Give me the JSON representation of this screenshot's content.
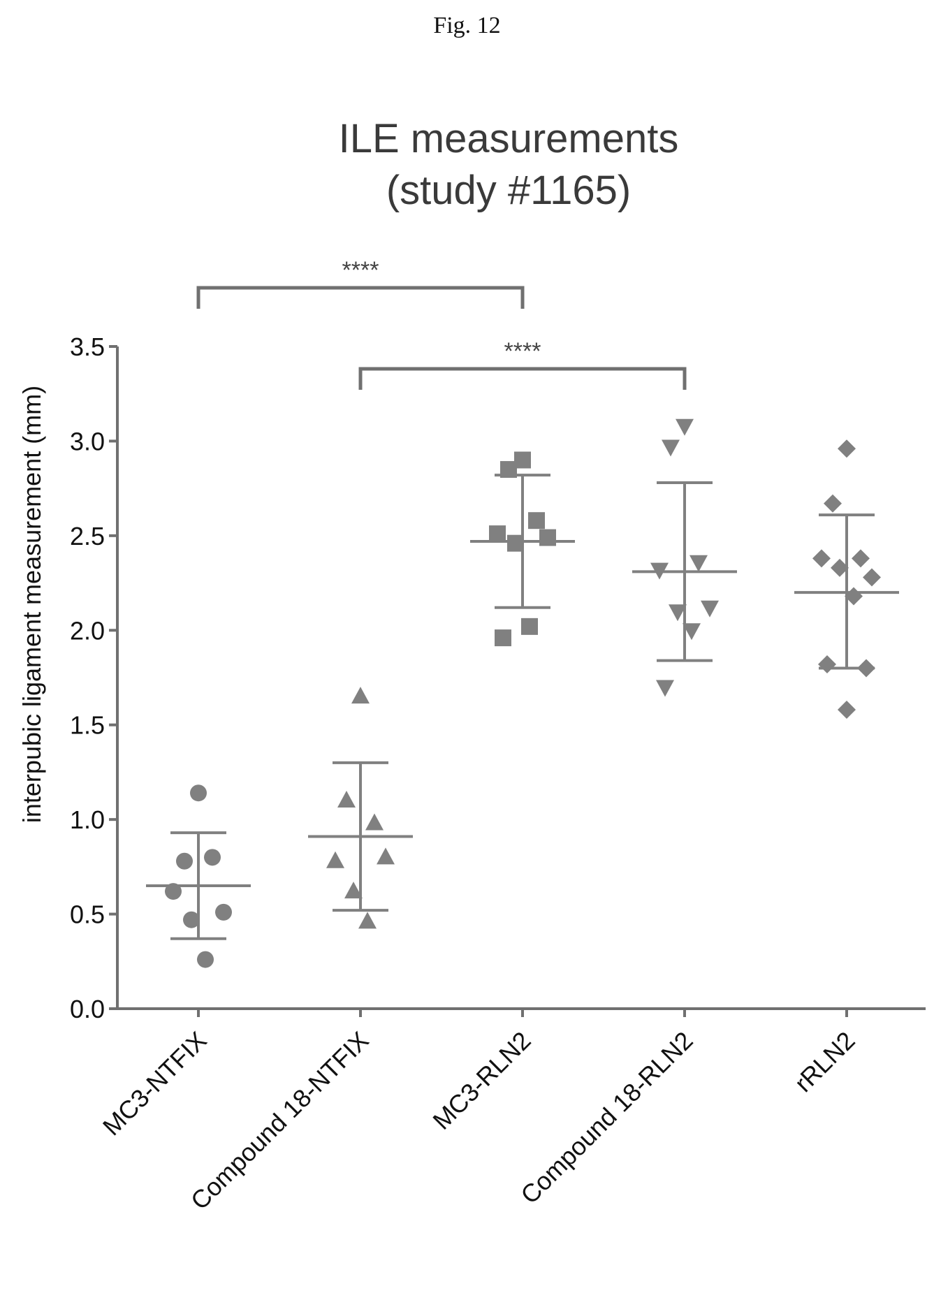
{
  "figure_label": "Fig. 12",
  "chart_data": {
    "type": "scatter",
    "title": "ILE measurements",
    "subtitle": "(study #1165)",
    "ylabel": "interpubic ligament measurement (mm)",
    "xlabel": "",
    "ylim": [
      0,
      3.5
    ],
    "yticks": [
      0.0,
      0.5,
      1.0,
      1.5,
      2.0,
      2.5,
      3.0,
      3.5
    ],
    "ytick_labels": [
      "0.0",
      "0.5",
      "1.0",
      "1.5",
      "2.0",
      "2.5",
      "3.0",
      "3.5"
    ],
    "categories": [
      "MC3-NTFIX",
      "Compound 18-NTFIX",
      "MC3-RLN2",
      "Compound 18-RLN2",
      "rRLN2"
    ],
    "groups": [
      {
        "category": "MC3-NTFIX",
        "marker": "circle",
        "points": [
          1.14,
          0.78,
          0.8,
          0.62,
          0.51,
          0.47,
          0.26
        ],
        "mean": 0.65,
        "sd_low": 0.37,
        "sd_high": 0.93
      },
      {
        "category": "Compound 18-NTFIX",
        "marker": "triangle-up",
        "points": [
          1.65,
          1.1,
          0.98,
          0.78,
          0.8,
          0.62,
          0.46
        ],
        "mean": 0.91,
        "sd_low": 0.52,
        "sd_high": 1.3
      },
      {
        "category": "MC3-RLN2",
        "marker": "square",
        "points": [
          2.9,
          2.85,
          2.58,
          2.51,
          2.49,
          2.46,
          2.02,
          1.96
        ],
        "mean": 2.47,
        "sd_low": 2.12,
        "sd_high": 2.82
      },
      {
        "category": "Compound 18-RLN2",
        "marker": "triangle-down",
        "points": [
          3.08,
          2.97,
          2.36,
          2.32,
          2.12,
          2.1,
          2.0,
          1.7
        ],
        "mean": 2.31,
        "sd_low": 1.84,
        "sd_high": 2.78
      },
      {
        "category": "rRLN2",
        "marker": "diamond",
        "points": [
          2.96,
          2.67,
          2.38,
          2.38,
          2.28,
          2.33,
          2.18,
          1.82,
          1.8,
          1.58
        ],
        "mean": 2.2,
        "sd_low": 1.8,
        "sd_high": 2.61
      }
    ],
    "significance": [
      {
        "from": 0,
        "to": 2,
        "label": "****"
      },
      {
        "from": 1,
        "to": 3,
        "label": "****"
      }
    ],
    "colors": {
      "marker": "#808080",
      "axis": "#707070",
      "text": "#111111"
    }
  }
}
